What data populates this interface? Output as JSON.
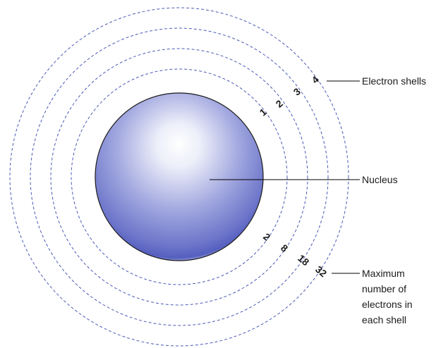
{
  "labels": {
    "electron_shells": "Electron shells",
    "nucleus": "Nucleus",
    "max_electrons": [
      "Maximum",
      "number of",
      "electrons in",
      "each shell"
    ]
  },
  "shells": [
    {
      "number": "1",
      "capacity": "2"
    },
    {
      "number": "2",
      "capacity": "8"
    },
    {
      "number": "3",
      "capacity": "18"
    },
    {
      "number": "4",
      "capacity": "32"
    }
  ],
  "colors": {
    "shell_stroke": "#4c5ab4",
    "nucleus_highlight": "#ffffff",
    "nucleus_mid": "#a3a9e0",
    "nucleus_dark": "#555fbf",
    "nucleus_outline": "#1a1a1a"
  }
}
